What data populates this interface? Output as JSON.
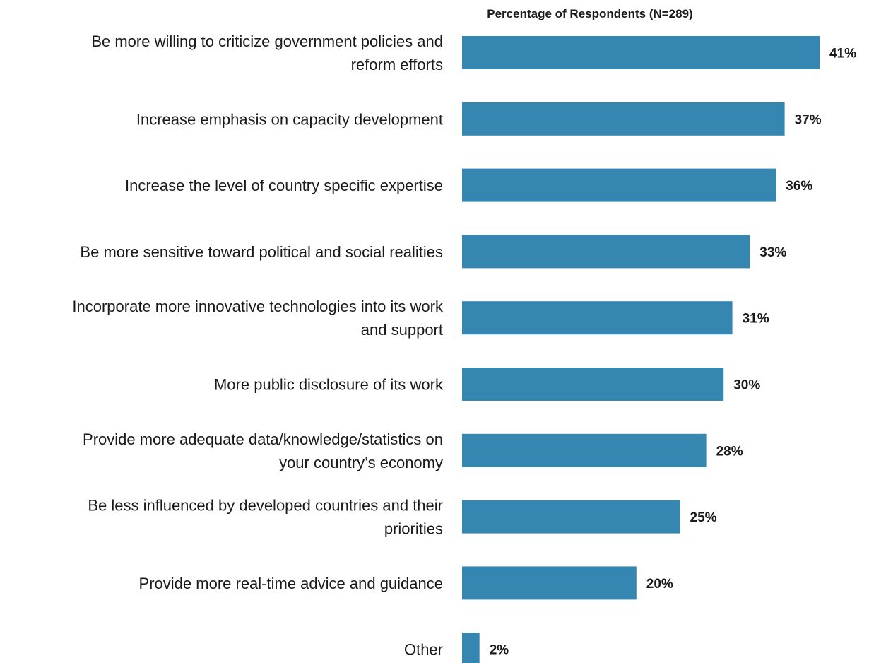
{
  "chart_data": {
    "type": "bar",
    "orientation": "horizontal",
    "title": "Percentage of Respondents (N=289)",
    "xlabel": "",
    "ylabel": "",
    "xlim": [
      0,
      41
    ],
    "grid": false,
    "legend": "none",
    "bar_color": "#3586b0",
    "categories": [
      "Be more willing to criticize government policies and reform efforts",
      "Increase emphasis on capacity development",
      "Increase the level of country specific expertise",
      "Be more sensitive toward political and social realities",
      "Incorporate more innovative technologies into its work and support",
      "More public disclosure of its work",
      "Provide more adequate data/knowledge/statistics on your country’s economy",
      "Be less influenced by developed countries and their priorities",
      "Provide more real-time advice and guidance",
      "Other"
    ],
    "values": [
      41,
      37,
      36,
      33,
      31,
      30,
      28,
      25,
      20,
      2
    ],
    "value_labels": [
      "41%",
      "37%",
      "36%",
      "33%",
      "31%",
      "30%",
      "28%",
      "25%",
      "20%",
      "2%"
    ],
    "category_lines": [
      [
        "Be more willing to criticize government policies and",
        "reform efforts"
      ],
      [
        "Increase emphasis on capacity development"
      ],
      [
        "Increase the level of country specific expertise"
      ],
      [
        "Be more sensitive toward political and social realities"
      ],
      [
        "Incorporate more innovative technologies into its work",
        "and support"
      ],
      [
        "More public disclosure of its work"
      ],
      [
        "Provide more adequate data/knowledge/statistics on",
        "your country’s economy"
      ],
      [
        "Be less influenced by developed countries and their",
        "priorities"
      ],
      [
        "Provide more real-time advice and guidance"
      ],
      [
        "Other"
      ]
    ]
  }
}
